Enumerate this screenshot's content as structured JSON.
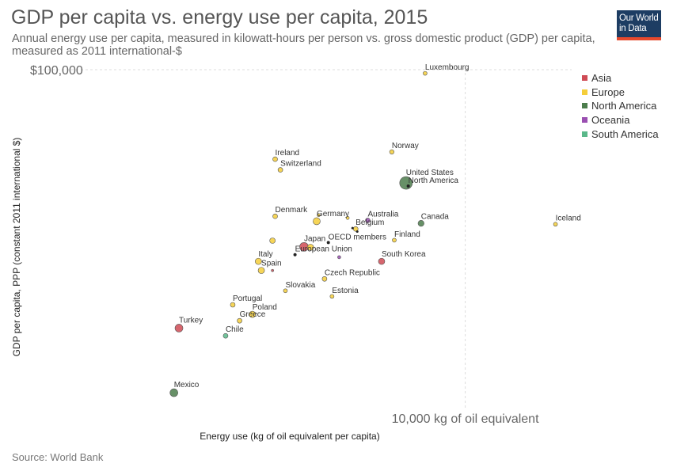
{
  "header": {
    "title": "GDP per capita vs. energy use per capita, 2015",
    "subtitle": "Annual energy use per capita, measured in kilowatt-hours per person vs. gross domestic product (GDP) per capita, measured as 2011 international-$"
  },
  "logo": {
    "line1": "Our World",
    "line2": "in Data"
  },
  "footer": {
    "source": "Source: World Bank"
  },
  "chart_data": {
    "type": "scatter",
    "title": "GDP per capita vs. energy use per capita, 2015",
    "xlabel": "Energy use (kg of oil equivalent per capita)",
    "ylabel": "GDP per capita, PPP (constant 2011 international $)",
    "x_scale": "log",
    "y_scale": "log",
    "xlim": [
      600,
      20000
    ],
    "ylim": [
      15000,
      100000
    ],
    "x_ticks": [
      {
        "value": 10000,
        "label": "10,000 kg of oil equivalent"
      }
    ],
    "y_ticks": [
      {
        "value": 100000,
        "label": "$100,000"
      }
    ],
    "grid": true,
    "legend_position": "top-right",
    "series": [
      {
        "name": "Asia",
        "color": "#cf4b55"
      },
      {
        "name": "Europe",
        "color": "#f5ce3a"
      },
      {
        "name": "North America",
        "color": "#4c7d4c"
      },
      {
        "name": "Oceania",
        "color": "#9a4fb1"
      },
      {
        "name": "South America",
        "color": "#5ab88a"
      }
    ],
    "points": [
      {
        "label": "Luxembourg",
        "series": "Europe",
        "x": 7700,
        "y": 98000,
        "size": 2.5
      },
      {
        "label": "Norway",
        "series": "Europe",
        "x": 6200,
        "y": 63500,
        "size": 2.8
      },
      {
        "label": "Ireland",
        "series": "Europe",
        "x": 2900,
        "y": 61000,
        "size": 3
      },
      {
        "label": "Switzerland",
        "series": "Europe",
        "x": 3000,
        "y": 57500,
        "size": 3
      },
      {
        "label": "United States",
        "series": "North America",
        "x": 6800,
        "y": 53500,
        "size": 8
      },
      {
        "label": "North America",
        "series": "",
        "x": 6900,
        "y": 52600,
        "size": 2
      },
      {
        "label": "Denmark",
        "series": "Europe",
        "x": 2900,
        "y": 44500,
        "size": 3
      },
      {
        "label": "Germany",
        "series": "Europe",
        "x": 3800,
        "y": 43300,
        "size": 4.5
      },
      {
        "label": "Australia",
        "series": "Oceania",
        "x": 5300,
        "y": 43500,
        "size": 3
      },
      {
        "label": "Canada",
        "series": "North America",
        "x": 7500,
        "y": 42800,
        "size": 3.8
      },
      {
        "label": "Iceland",
        "series": "Europe",
        "x": 18000,
        "y": 42600,
        "size": 2.5
      },
      {
        "label": "Belgium",
        "series": "Europe",
        "x": 4900,
        "y": 41500,
        "size": 3
      },
      {
        "label": "",
        "series": "",
        "x": 4800,
        "y": 41700,
        "size": 1.5
      },
      {
        "label": "",
        "series": "",
        "x": 4950,
        "y": 40900,
        "size": 1.5
      },
      {
        "label": "Finland",
        "series": "Europe",
        "x": 6300,
        "y": 39000,
        "size": 2.5
      },
      {
        "label": "OECD members",
        "series": "",
        "x": 4100,
        "y": 38500,
        "size": 2
      },
      {
        "label": "Japan",
        "series": "Asia",
        "x": 3500,
        "y": 37600,
        "size": 5.5
      },
      {
        "label": "",
        "series": "Europe",
        "x": 3650,
        "y": 37500,
        "size": 4
      },
      {
        "label": "",
        "series": "Europe",
        "x": 2850,
        "y": 38900,
        "size": 3.5
      },
      {
        "label": "",
        "series": "Europe",
        "x": 3850,
        "y": 44800,
        "size": 2
      },
      {
        "label": "",
        "series": "Europe",
        "x": 4650,
        "y": 44100,
        "size": 2
      },
      {
        "label": "European Union",
        "series": "",
        "x": 3300,
        "y": 36000,
        "size": 2
      },
      {
        "label": "",
        "series": "Oceania",
        "x": 4400,
        "y": 35500,
        "size": 2
      },
      {
        "label": "South Korea",
        "series": "Asia",
        "x": 5800,
        "y": 34700,
        "size": 4
      },
      {
        "label": "Italy",
        "series": "Europe",
        "x": 2600,
        "y": 34700,
        "size": 4
      },
      {
        "label": "Spain",
        "series": "Europe",
        "x": 2650,
        "y": 33000,
        "size": 4
      },
      {
        "label": "",
        "series": "Asia",
        "x": 2850,
        "y": 33000,
        "size": 1.5
      },
      {
        "label": "Czech Republic",
        "series": "Europe",
        "x": 4000,
        "y": 31500,
        "size": 3
      },
      {
        "label": "Slovakia",
        "series": "Europe",
        "x": 3100,
        "y": 29500,
        "size": 2.5
      },
      {
        "label": "Estonia",
        "series": "Europe",
        "x": 4200,
        "y": 28600,
        "size": 2.5
      },
      {
        "label": "Portugal",
        "series": "Europe",
        "x": 2200,
        "y": 27300,
        "size": 3
      },
      {
        "label": "Poland",
        "series": "Europe",
        "x": 2500,
        "y": 25900,
        "size": 4
      },
      {
        "label": "Greece",
        "series": "Europe",
        "x": 2300,
        "y": 25000,
        "size": 3
      },
      {
        "label": "Turkey",
        "series": "Asia",
        "x": 1550,
        "y": 24000,
        "size": 5
      },
      {
        "label": "Chile",
        "series": "South America",
        "x": 2100,
        "y": 23000,
        "size": 3
      },
      {
        "label": "Mexico",
        "series": "North America",
        "x": 1500,
        "y": 16800,
        "size": 5
      }
    ]
  }
}
